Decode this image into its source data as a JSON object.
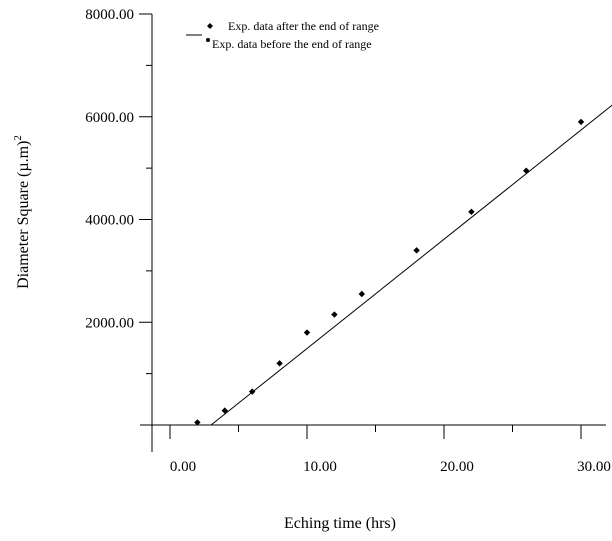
{
  "chart_data": {
    "type": "scatter",
    "xlabel": "Eching time (hrs)",
    "ylabel": "Diameter Square (µ.m)",
    "ylabel_superscript": "2",
    "xlim": [
      -1,
      33.8
    ],
    "ylim": [
      0,
      8000
    ],
    "x_ticks": [
      {
        "value": 0,
        "label": "0.00"
      },
      {
        "value": 10,
        "label": "10.00"
      },
      {
        "value": 20,
        "label": "20.00"
      },
      {
        "value": 30,
        "label": "30.00"
      }
    ],
    "x_minor_ticks": [
      5,
      15,
      25
    ],
    "y_ticks": [
      {
        "value": 2000,
        "label": "2000.00"
      },
      {
        "value": 4000,
        "label": "4000.00"
      },
      {
        "value": 6000,
        "label": "6000.00"
      },
      {
        "value": 8000,
        "label": "8000.00"
      }
    ],
    "y_minor_ticks": [
      1000,
      3000,
      5000,
      7000
    ],
    "legend": {
      "placement": "top-left",
      "entries": [
        {
          "label": "Exp. data after the end of range",
          "marker": "diamond"
        },
        {
          "label": "Exp. data before the end of range",
          "marker": "line-dot"
        }
      ]
    },
    "series": [
      {
        "marker": "diamond",
        "color": "#000000",
        "points": [
          {
            "x": 2,
            "y": 50
          },
          {
            "x": 4,
            "y": 280
          },
          {
            "x": 6,
            "y": 650
          },
          {
            "x": 8,
            "y": 1200
          },
          {
            "x": 10,
            "y": 1800
          },
          {
            "x": 12,
            "y": 2150
          },
          {
            "x": 14,
            "y": 2550
          },
          {
            "x": 18,
            "y": 3400
          },
          {
            "x": 22,
            "y": 4150
          },
          {
            "x": 26,
            "y": 4950
          },
          {
            "x": 30,
            "y": 5900
          }
        ]
      }
    ],
    "fit_line": {
      "color": "#000000",
      "points": [
        {
          "x": 3.0,
          "y": 0
        },
        {
          "x": 33.8,
          "y": 6550
        }
      ]
    }
  }
}
